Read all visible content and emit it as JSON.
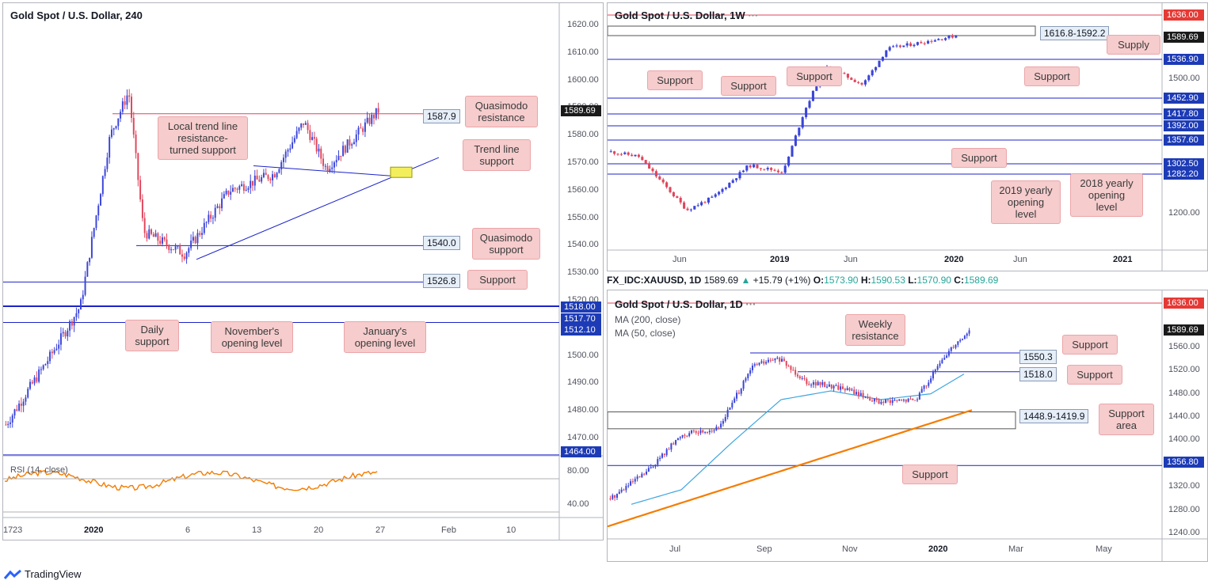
{
  "panel_a": {
    "title": "Gold Spot / U.S. Dollar, 240",
    "rsi_label": "RSI (14, close)",
    "y_ticks": [
      "1620.00",
      "1610.00",
      "1600.00",
      "1590.00",
      "1580.00",
      "1570.00",
      "1560.00",
      "1550.00",
      "1540.00",
      "1530.00",
      "1520.00",
      "1510.00",
      "1500.00",
      "1490.00",
      "1480.00",
      "1470.00"
    ],
    "rsi_ticks": [
      "80.00",
      "40.00"
    ],
    "x_ticks": [
      "23",
      "2020",
      "6",
      "13",
      "20",
      "27",
      "Feb",
      "10",
      "17"
    ],
    "price_labels": [
      {
        "text": "1589.69",
        "color": "black"
      },
      {
        "text": "1518.00",
        "color": "navy"
      },
      {
        "text": "1517.70",
        "color": "navy"
      },
      {
        "text": "1512.10",
        "color": "navy"
      },
      {
        "text": "1464.00",
        "color": "navy"
      }
    ],
    "level_tags": [
      "1587.9",
      "1540.0",
      "1526.8"
    ],
    "notes": [
      "Quasimodo resistance",
      "Local trend line resistance-turned support",
      "Trend line support",
      "Quasimodo support",
      "Support",
      "Daily support",
      "November's opening level",
      "January's opening level"
    ]
  },
  "panel_b": {
    "title": "Gold Spot / U.S. Dollar, 1W",
    "y_ticks": [
      "1500.00",
      "1200.00"
    ],
    "x_ticks": [
      "Jun",
      "2019",
      "Jun",
      "2020",
      "Jun",
      "2021"
    ],
    "price_labels": [
      {
        "text": "1636.00",
        "color": "red"
      },
      {
        "text": "1589.69",
        "color": "black"
      },
      {
        "text": "1536.90",
        "color": "navy"
      },
      {
        "text": "1452.90",
        "color": "navy"
      },
      {
        "text": "1417.80",
        "color": "navy"
      },
      {
        "text": "1392.00",
        "color": "navy"
      },
      {
        "text": "1357.60",
        "color": "navy"
      },
      {
        "text": "1302.50",
        "color": "navy"
      },
      {
        "text": "1282.20",
        "color": "navy"
      }
    ],
    "zone_tag": "1616.8-1592.2",
    "notes": [
      "Supply",
      "Support",
      "Support",
      "Support",
      "Support",
      "Support",
      "2019 yearly opening level",
      "2018 yearly opening level"
    ]
  },
  "symbol_bar": {
    "symbol": "FX_IDC:XAUUSD, 1D",
    "last": "1589.69",
    "change": "+15.79 (+1%)",
    "o_label": "O:",
    "o": "1573.90",
    "h_label": "H:",
    "h": "1590.53",
    "l_label": "L:",
    "l": "1570.90",
    "c_label": "C:",
    "c": "1589.69"
  },
  "panel_c": {
    "title": "Gold Spot / U.S. Dollar, 1D",
    "ma200": "MA (200, close)",
    "ma50": "MA (50, close)",
    "y_ticks": [
      "1560.00",
      "1520.00",
      "1480.00",
      "1440.00",
      "1400.00",
      "1320.00",
      "1280.00",
      "1240.00"
    ],
    "x_ticks": [
      "Jul",
      "Sep",
      "Nov",
      "2020",
      "Mar",
      "May"
    ],
    "price_labels": [
      {
        "text": "1636.00",
        "color": "red"
      },
      {
        "text": "1589.69",
        "color": "black"
      },
      {
        "text": "1356.80",
        "color": "navy"
      }
    ],
    "level_tags": [
      "1550.3",
      "1518.0",
      "1448.9-1419.9"
    ],
    "notes": [
      "Weekly resistance",
      "Support",
      "Support",
      "Support area",
      "Support"
    ]
  },
  "footer": {
    "brand": "TradingView"
  },
  "chart_data": [
    {
      "type": "candlestick",
      "title": "Gold Spot / U.S. Dollar, 240",
      "ylim": [
        1465,
        1625
      ],
      "levels": [
        1589.69,
        1587.9,
        1540.0,
        1526.8,
        1518.0,
        1517.7,
        1512.1,
        1464.0
      ],
      "indicator": "RSI (14, close)"
    },
    {
      "type": "candlestick",
      "title": "Gold Spot / U.S. Dollar, 1W",
      "levels": [
        1636.0,
        1589.69,
        1536.9,
        1452.9,
        1417.8,
        1392.0,
        1357.6,
        1302.5,
        1282.2
      ],
      "zone": [
        1616.8,
        1592.2
      ]
    },
    {
      "type": "candlestick",
      "title": "Gold Spot / U.S. Dollar, 1D",
      "ylim": [
        1230,
        1640
      ],
      "levels": [
        1636.0,
        1589.69,
        1550.3,
        1518.0,
        1356.8
      ],
      "zone": [
        1448.9,
        1419.9
      ],
      "series": [
        {
          "name": "MA (200, close)"
        },
        {
          "name": "MA (50, close)"
        }
      ]
    }
  ]
}
